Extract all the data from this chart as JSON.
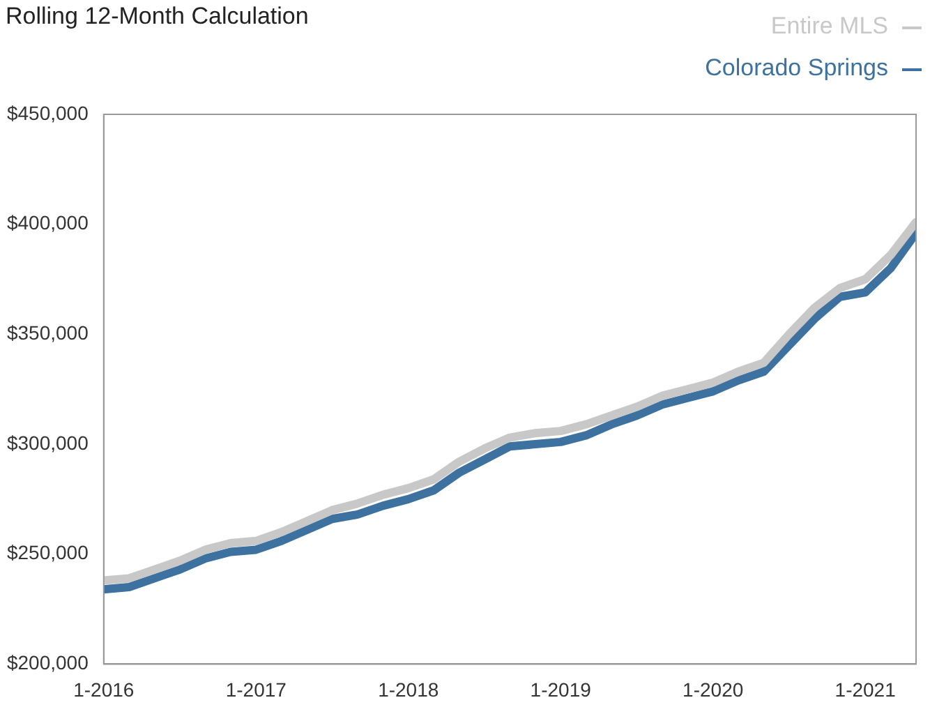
{
  "chart_data": {
    "type": "line",
    "title": "Rolling 12-Month Calculation",
    "x": [
      "2016-01",
      "2016-03",
      "2016-05",
      "2016-07",
      "2016-09",
      "2016-11",
      "2017-01",
      "2017-03",
      "2017-05",
      "2017-07",
      "2017-09",
      "2017-11",
      "2018-01",
      "2018-03",
      "2018-05",
      "2018-07",
      "2018-09",
      "2018-11",
      "2019-01",
      "2019-03",
      "2019-05",
      "2019-07",
      "2019-09",
      "2019-11",
      "2020-01",
      "2020-03",
      "2020-05",
      "2020-07",
      "2020-09",
      "2020-11",
      "2021-01",
      "2021-03",
      "2021-05"
    ],
    "series": [
      {
        "name": "Entire MLS",
        "color": "#c8c8c8",
        "values": [
          238000,
          239000,
          243000,
          247000,
          252000,
          255000,
          256000,
          260000,
          265000,
          270000,
          273000,
          277000,
          280000,
          284000,
          292000,
          298000,
          303000,
          305000,
          306000,
          309000,
          313000,
          317000,
          322000,
          325000,
          328000,
          333000,
          337000,
          350000,
          362000,
          371000,
          375000,
          386000,
          401000
        ]
      },
      {
        "name": "Colorado Springs",
        "color": "#3d72a0",
        "values": [
          234000,
          235000,
          239000,
          243000,
          248000,
          251000,
          252000,
          256000,
          261000,
          266000,
          268000,
          272000,
          275000,
          279000,
          287000,
          293000,
          299000,
          300000,
          301000,
          304000,
          309000,
          313000,
          318000,
          321000,
          324000,
          329000,
          333000,
          345000,
          357000,
          367000,
          369000,
          380000,
          396000
        ]
      }
    ],
    "xlim": [
      "2016-01",
      "2021-05"
    ],
    "xticks": [
      {
        "value": "2016-01",
        "label": "1-2016"
      },
      {
        "value": "2017-01",
        "label": "1-2017"
      },
      {
        "value": "2018-01",
        "label": "1-2018"
      },
      {
        "value": "2019-01",
        "label": "1-2019"
      },
      {
        "value": "2020-01",
        "label": "1-2020"
      },
      {
        "value": "2021-01",
        "label": "1-2021"
      }
    ],
    "ylim": [
      200000,
      450000
    ],
    "yticks": [
      {
        "value": 200000,
        "label": "$200,000"
      },
      {
        "value": 250000,
        "label": "$250,000"
      },
      {
        "value": 300000,
        "label": "$300,000"
      },
      {
        "value": 350000,
        "label": "$350,000"
      },
      {
        "value": 400000,
        "label": "$400,000"
      },
      {
        "value": 450000,
        "label": "$450,000"
      }
    ],
    "legend": "top right",
    "line_style": "solid",
    "marker": "none",
    "grid": false
  }
}
